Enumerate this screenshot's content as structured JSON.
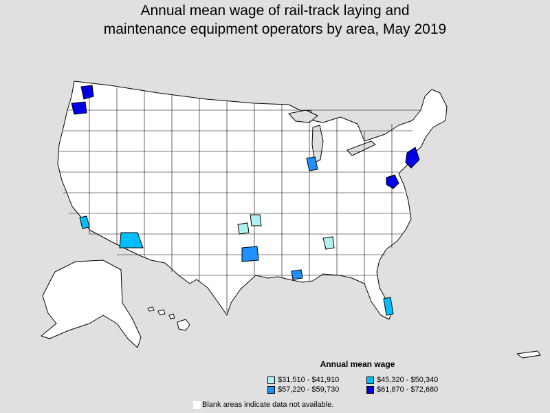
{
  "title": {
    "line1": "Annual mean wage of rail-track laying and",
    "line2": "maintenance equipment operators by area, May 2019"
  },
  "legend": {
    "title": "Annual mean wage",
    "items": [
      {
        "label": "$31,510 - $41,910",
        "color": "#b2f0f0"
      },
      {
        "label": "$45,320 - $50,340",
        "color": "#00bfff"
      },
      {
        "label": "$57,220 - $59,730",
        "color": "#1e90ff"
      },
      {
        "label": "$61,870 - $72,680",
        "color": "#0000e6"
      }
    ]
  },
  "note": "Blank areas indicate data not available.",
  "colors": {
    "background": "#e0e0e0",
    "land": "#ffffff",
    "border": "#000000"
  }
}
